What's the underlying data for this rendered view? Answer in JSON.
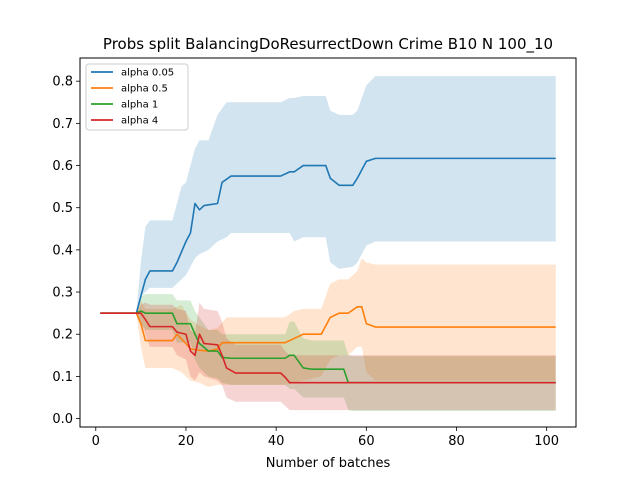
{
  "chart_data": {
    "type": "line",
    "title": "Probs split BalancingDoResurrectDown Crime B10 N 100_10",
    "xlabel": "Number of batches",
    "ylabel": "",
    "xlim": [
      -3.5,
      106.5
    ],
    "ylim": [
      -0.02,
      0.855
    ],
    "xticks": [
      0,
      20,
      40,
      60,
      80,
      100
    ],
    "yticks": [
      0.0,
      0.1,
      0.2,
      0.3,
      0.4,
      0.5,
      0.6,
      0.7,
      0.8
    ],
    "grid": false,
    "legend_position": "upper-left",
    "series": [
      {
        "name": "alpha 0.05",
        "color": "#1f77b4",
        "points": [
          [
            1,
            0.25
          ],
          [
            9,
            0.25
          ],
          [
            10,
            0.29
          ],
          [
            11,
            0.33
          ],
          [
            12,
            0.35
          ],
          [
            17,
            0.35
          ],
          [
            18,
            0.37
          ],
          [
            20,
            0.42
          ],
          [
            21,
            0.44
          ],
          [
            22,
            0.51
          ],
          [
            23,
            0.495
          ],
          [
            24,
            0.505
          ],
          [
            27,
            0.51
          ],
          [
            28,
            0.56
          ],
          [
            30,
            0.575
          ],
          [
            41,
            0.575
          ],
          [
            43,
            0.585
          ],
          [
            44,
            0.585
          ],
          [
            46,
            0.6
          ],
          [
            51,
            0.6
          ],
          [
            52,
            0.57
          ],
          [
            54,
            0.553
          ],
          [
            57,
            0.553
          ],
          [
            58,
            0.57
          ],
          [
            60,
            0.61
          ],
          [
            62,
            0.617
          ],
          [
            102,
            0.617
          ]
        ],
        "band": [
          [
            1,
            0.25,
            0.25
          ],
          [
            9,
            0.25,
            0.25
          ],
          [
            10,
            0.37,
            0.29
          ],
          [
            11,
            0.455,
            0.3
          ],
          [
            12,
            0.47,
            0.31
          ],
          [
            17,
            0.47,
            0.31
          ],
          [
            19,
            0.55,
            0.33
          ],
          [
            20,
            0.56,
            0.34
          ],
          [
            21,
            0.6,
            0.36
          ],
          [
            22,
            0.64,
            0.38
          ],
          [
            23,
            0.66,
            0.39
          ],
          [
            25,
            0.66,
            0.4
          ],
          [
            27,
            0.72,
            0.42
          ],
          [
            29,
            0.75,
            0.43
          ],
          [
            30,
            0.75,
            0.44
          ],
          [
            41,
            0.75,
            0.44
          ],
          [
            43,
            0.76,
            0.44
          ],
          [
            44,
            0.76,
            0.42
          ],
          [
            46,
            0.765,
            0.43
          ],
          [
            51,
            0.765,
            0.43
          ],
          [
            52,
            0.73,
            0.37
          ],
          [
            54,
            0.72,
            0.355
          ],
          [
            57,
            0.72,
            0.36
          ],
          [
            58,
            0.73,
            0.37
          ],
          [
            60,
            0.79,
            0.41
          ],
          [
            62,
            0.812,
            0.42
          ],
          [
            102,
            0.812,
            0.42
          ]
        ]
      },
      {
        "name": "alpha 0.5",
        "color": "#ff7f0e",
        "points": [
          [
            1,
            0.25
          ],
          [
            9,
            0.25
          ],
          [
            10,
            0.225
          ],
          [
            11,
            0.185
          ],
          [
            17,
            0.185
          ],
          [
            18,
            0.2
          ],
          [
            20,
            0.178
          ],
          [
            21,
            0.165
          ],
          [
            23,
            0.162
          ],
          [
            25,
            0.16
          ],
          [
            27,
            0.165
          ],
          [
            28,
            0.18
          ],
          [
            30,
            0.18
          ],
          [
            42,
            0.18
          ],
          [
            44,
            0.19
          ],
          [
            46,
            0.2
          ],
          [
            50,
            0.2
          ],
          [
            52,
            0.24
          ],
          [
            54,
            0.25
          ],
          [
            56,
            0.25
          ],
          [
            58,
            0.265
          ],
          [
            59,
            0.265
          ],
          [
            60,
            0.225
          ],
          [
            62,
            0.217
          ],
          [
            102,
            0.217
          ]
        ],
        "band": [
          [
            1,
            0.25,
            0.25
          ],
          [
            9,
            0.25,
            0.25
          ],
          [
            10,
            0.28,
            0.17
          ],
          [
            11,
            0.26,
            0.12
          ],
          [
            17,
            0.26,
            0.12
          ],
          [
            19,
            0.27,
            0.11
          ],
          [
            20,
            0.25,
            0.1
          ],
          [
            21,
            0.235,
            0.09
          ],
          [
            23,
            0.22,
            0.085
          ],
          [
            25,
            0.21,
            0.075
          ],
          [
            27,
            0.215,
            0.08
          ],
          [
            29,
            0.24,
            0.08
          ],
          [
            30,
            0.24,
            0.08
          ],
          [
            42,
            0.24,
            0.08
          ],
          [
            44,
            0.255,
            0.085
          ],
          [
            46,
            0.26,
            0.09
          ],
          [
            50,
            0.26,
            0.1
          ],
          [
            52,
            0.32,
            0.14
          ],
          [
            54,
            0.33,
            0.15
          ],
          [
            56,
            0.33,
            0.15
          ],
          [
            58,
            0.35,
            0.17
          ],
          [
            59,
            0.38,
            0.17
          ],
          [
            60,
            0.37,
            0.11
          ],
          [
            62,
            0.365,
            0.09
          ],
          [
            102,
            0.365,
            0.09
          ]
        ]
      },
      {
        "name": "alpha 1",
        "color": "#2ca02c",
        "points": [
          [
            1,
            0.25
          ],
          [
            9,
            0.25
          ],
          [
            10,
            0.255
          ],
          [
            11,
            0.25
          ],
          [
            17,
            0.25
          ],
          [
            18,
            0.225
          ],
          [
            21,
            0.225
          ],
          [
            22,
            0.2
          ],
          [
            23,
            0.178
          ],
          [
            25,
            0.16
          ],
          [
            27,
            0.16
          ],
          [
            28,
            0.145
          ],
          [
            30,
            0.143
          ],
          [
            42,
            0.143
          ],
          [
            43,
            0.15
          ],
          [
            44,
            0.15
          ],
          [
            46,
            0.12
          ],
          [
            48,
            0.117
          ],
          [
            55,
            0.117
          ],
          [
            56,
            0.085
          ],
          [
            57,
            0.085
          ],
          [
            102,
            0.085
          ]
        ],
        "band": [
          [
            1,
            0.25,
            0.25
          ],
          [
            9,
            0.25,
            0.25
          ],
          [
            10,
            0.29,
            0.225
          ],
          [
            11,
            0.295,
            0.21
          ],
          [
            17,
            0.295,
            0.21
          ],
          [
            18,
            0.28,
            0.18
          ],
          [
            21,
            0.28,
            0.18
          ],
          [
            22,
            0.255,
            0.14
          ],
          [
            23,
            0.24,
            0.12
          ],
          [
            25,
            0.21,
            0.1
          ],
          [
            27,
            0.21,
            0.095
          ],
          [
            28,
            0.2,
            0.085
          ],
          [
            30,
            0.2,
            0.08
          ],
          [
            42,
            0.2,
            0.08
          ],
          [
            43,
            0.23,
            0.07
          ],
          [
            44,
            0.23,
            0.07
          ],
          [
            46,
            0.19,
            0.05
          ],
          [
            48,
            0.185,
            0.05
          ],
          [
            55,
            0.185,
            0.05
          ],
          [
            56,
            0.15,
            0.02
          ],
          [
            57,
            0.148,
            0.018
          ],
          [
            102,
            0.148,
            0.018
          ]
        ]
      },
      {
        "name": "alpha 4",
        "color": "#d62728",
        "points": [
          [
            1,
            0.25
          ],
          [
            9,
            0.25
          ],
          [
            10,
            0.25
          ],
          [
            11,
            0.235
          ],
          [
            12,
            0.218
          ],
          [
            17,
            0.218
          ],
          [
            18,
            0.205
          ],
          [
            20,
            0.2
          ],
          [
            21,
            0.16
          ],
          [
            22,
            0.15
          ],
          [
            23,
            0.2
          ],
          [
            24,
            0.178
          ],
          [
            27,
            0.175
          ],
          [
            28,
            0.15
          ],
          [
            29,
            0.12
          ],
          [
            31,
            0.108
          ],
          [
            41,
            0.108
          ],
          [
            42,
            0.098
          ],
          [
            43,
            0.085
          ],
          [
            44,
            0.085
          ],
          [
            102,
            0.085
          ]
        ],
        "band": [
          [
            1,
            0.25,
            0.25
          ],
          [
            9,
            0.25,
            0.25
          ],
          [
            10,
            0.27,
            0.23
          ],
          [
            11,
            0.275,
            0.2
          ],
          [
            12,
            0.27,
            0.17
          ],
          [
            17,
            0.27,
            0.17
          ],
          [
            18,
            0.26,
            0.15
          ],
          [
            20,
            0.255,
            0.14
          ],
          [
            21,
            0.21,
            0.1
          ],
          [
            22,
            0.2,
            0.09
          ],
          [
            23,
            0.275,
            0.11
          ],
          [
            24,
            0.26,
            0.1
          ],
          [
            27,
            0.255,
            0.09
          ],
          [
            28,
            0.23,
            0.08
          ],
          [
            29,
            0.19,
            0.05
          ],
          [
            31,
            0.175,
            0.04
          ],
          [
            41,
            0.175,
            0.04
          ],
          [
            42,
            0.16,
            0.03
          ],
          [
            43,
            0.15,
            0.02
          ],
          [
            44,
            0.15,
            0.02
          ],
          [
            102,
            0.15,
            0.02
          ]
        ]
      }
    ]
  }
}
